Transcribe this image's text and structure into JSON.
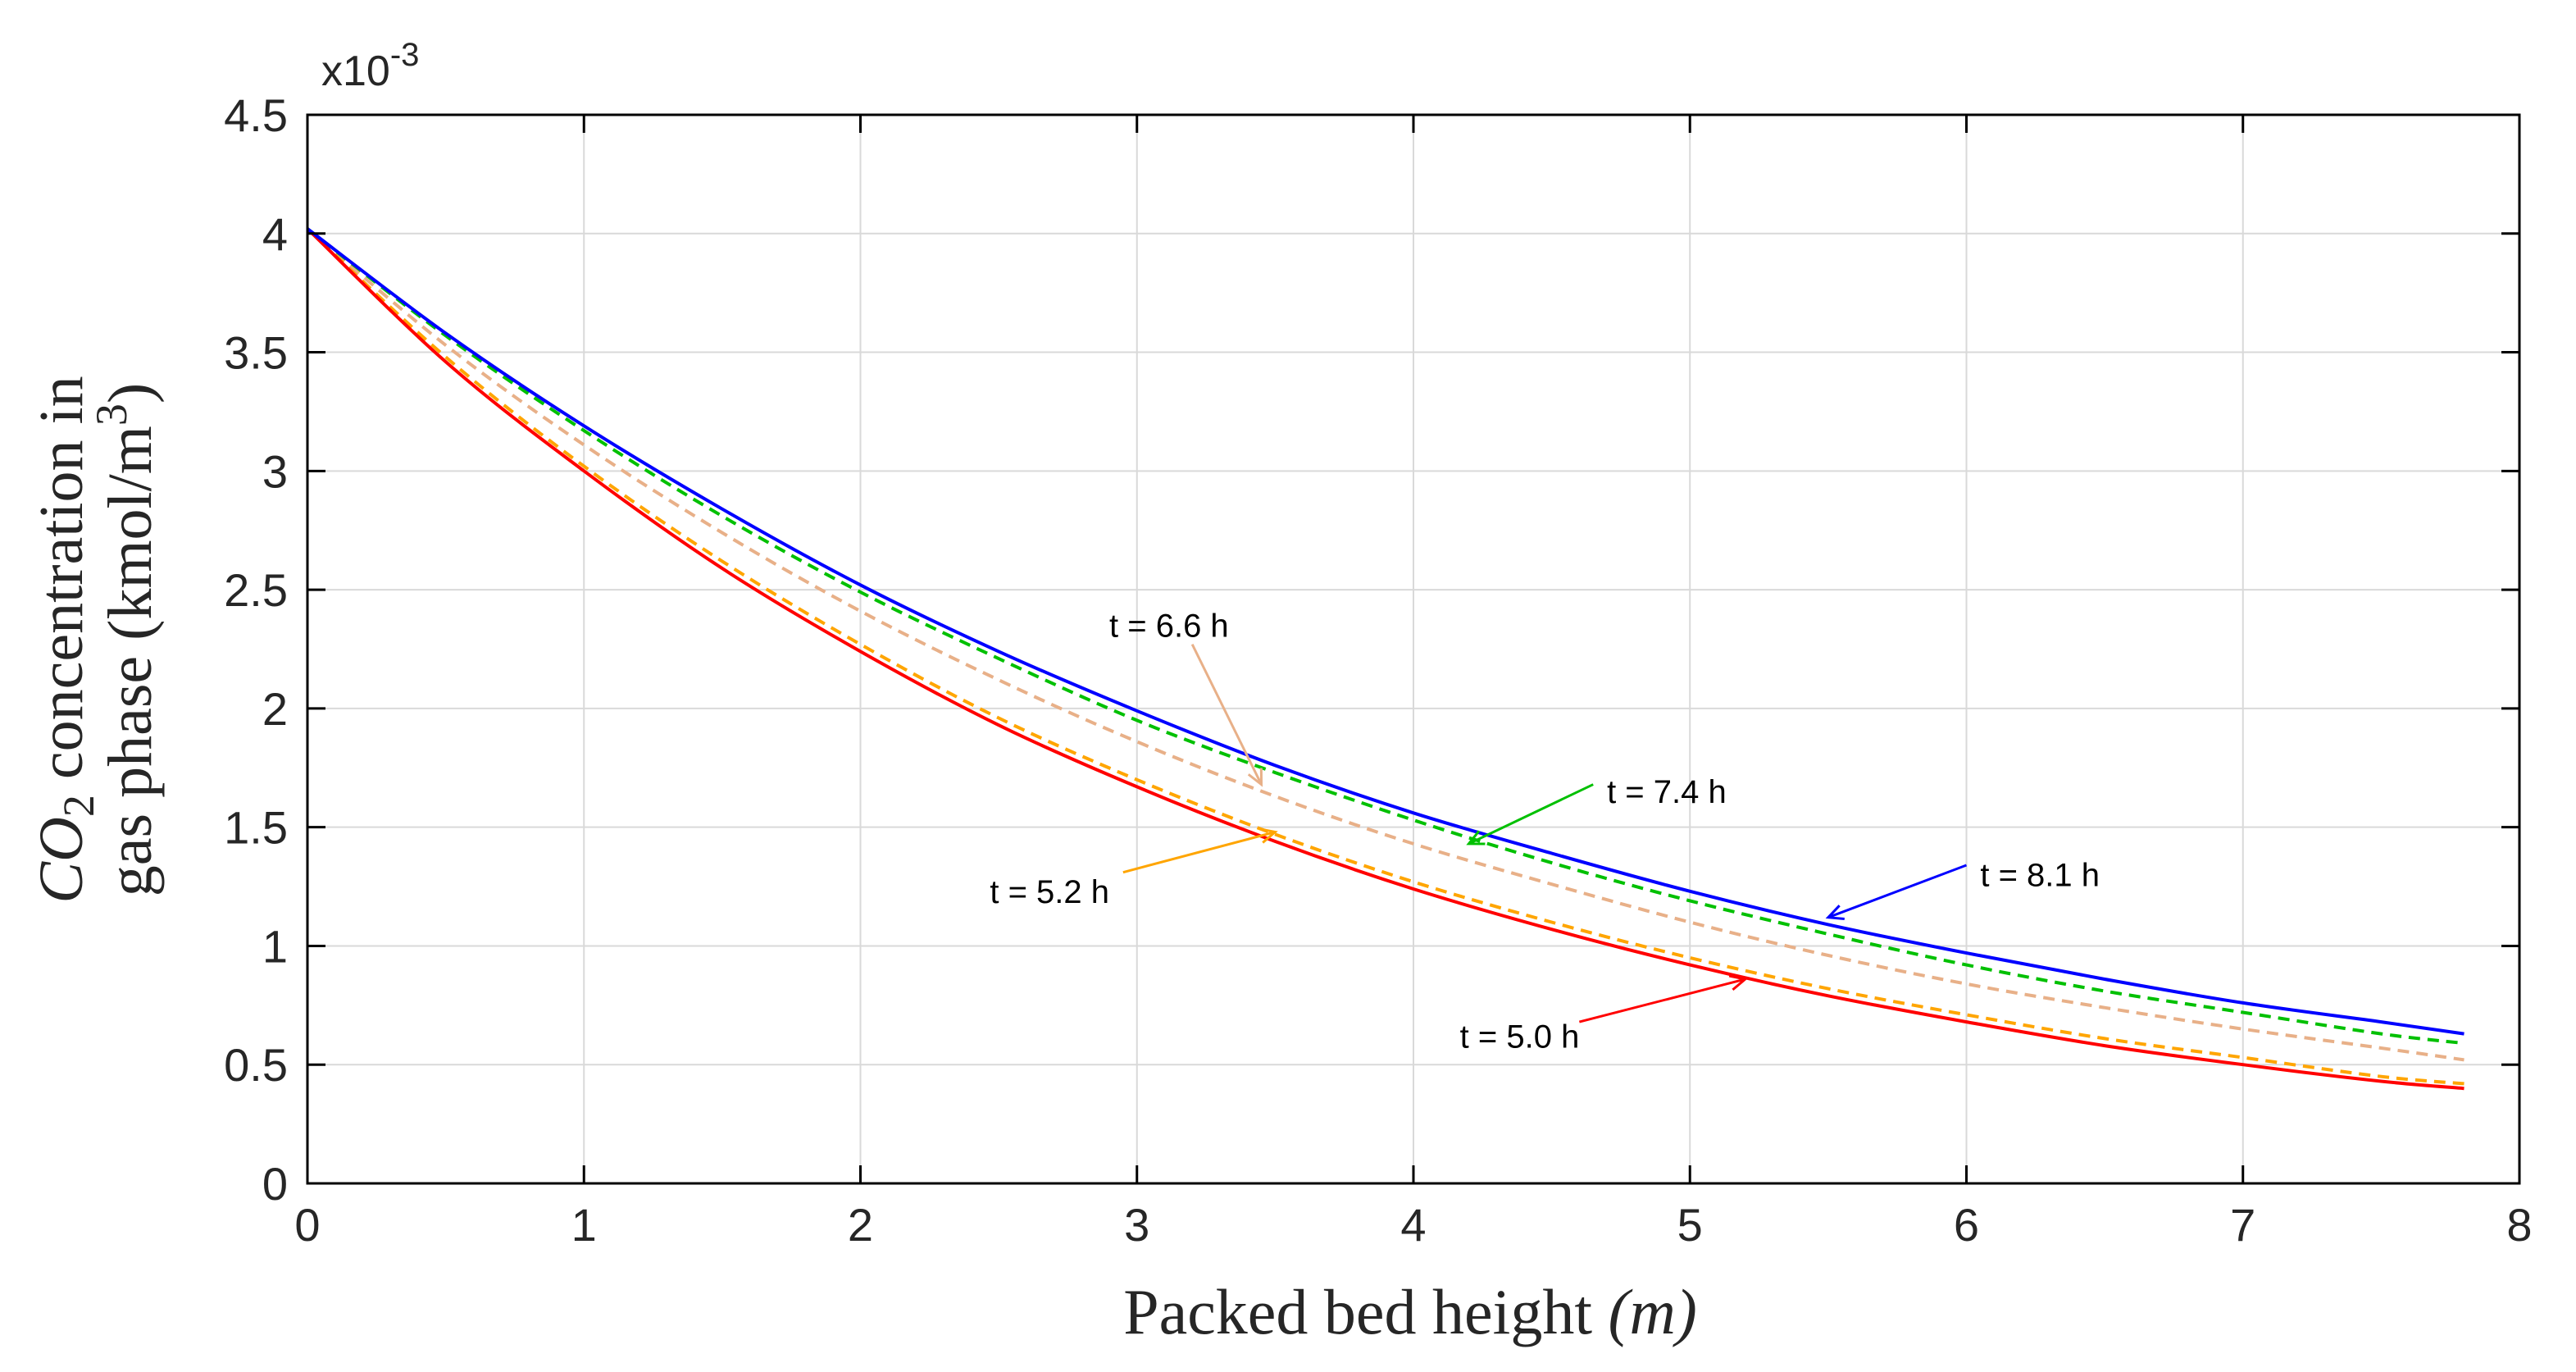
{
  "chart_data": {
    "type": "line",
    "title": "",
    "xlabel": "Packed bed height (m)",
    "xlabel_main": "Packed bed height ",
    "xlabel_unit": "(m)",
    "ylabel_line1_prefix": "CO",
    "ylabel_line1_sub": "2",
    "ylabel_line1_suffix": " concentration in",
    "ylabel_line2": "gas phase (kmol/m",
    "ylabel_line2_sup": "3",
    "ylabel_line2_end": ")",
    "exponent_base": "x10",
    "exponent_power": "-3",
    "xlim": [
      0,
      8
    ],
    "ylim": [
      0,
      4.5
    ],
    "xticks": [
      0,
      1,
      2,
      3,
      4,
      5,
      6,
      7,
      8
    ],
    "xtick_labels": [
      "0",
      "1",
      "2",
      "3",
      "4",
      "5",
      "6",
      "7",
      "8"
    ],
    "yticks": [
      0,
      0.5,
      1,
      1.5,
      2,
      2.5,
      3,
      3.5,
      4,
      4.5
    ],
    "ytick_labels": [
      "0",
      "0.5",
      "1",
      "1.5",
      "2",
      "2.5",
      "3",
      "3.5",
      "4",
      "4.5"
    ],
    "grid": true,
    "x": [
      0,
      0.5,
      1,
      1.5,
      2,
      2.5,
      3,
      3.5,
      4,
      4.5,
      5,
      5.5,
      6,
      6.5,
      7,
      7.5,
      7.8
    ],
    "series": [
      {
        "name": "t = 8.1 h",
        "color": "#0000ff",
        "dash": "solid",
        "values": [
          4.02,
          3.58,
          3.19,
          2.84,
          2.52,
          2.24,
          1.99,
          1.76,
          1.56,
          1.39,
          1.23,
          1.09,
          0.97,
          0.86,
          0.76,
          0.68,
          0.63
        ]
      },
      {
        "name": "t = 7.4 h",
        "color": "#00c000",
        "dash": "dashed",
        "values": [
          4.02,
          3.57,
          3.17,
          2.81,
          2.49,
          2.21,
          1.95,
          1.73,
          1.53,
          1.35,
          1.19,
          1.05,
          0.92,
          0.81,
          0.72,
          0.63,
          0.59
        ]
      },
      {
        "name": "t = 6.6 h",
        "color": "#e8b088",
        "dash": "dashed",
        "values": [
          4.02,
          3.53,
          3.11,
          2.74,
          2.41,
          2.12,
          1.86,
          1.63,
          1.43,
          1.26,
          1.1,
          0.96,
          0.84,
          0.74,
          0.65,
          0.57,
          0.52
        ]
      },
      {
        "name": "t = 5.2 h",
        "color": "#ffa500",
        "dash": "dashed",
        "values": [
          4.02,
          3.48,
          3.02,
          2.62,
          2.27,
          1.96,
          1.7,
          1.47,
          1.27,
          1.1,
          0.95,
          0.82,
          0.71,
          0.61,
          0.53,
          0.45,
          0.42
        ]
      },
      {
        "name": "t = 5.0 h",
        "color": "#ff0000",
        "dash": "solid",
        "values": [
          4.02,
          3.46,
          3.0,
          2.59,
          2.24,
          1.93,
          1.67,
          1.44,
          1.24,
          1.07,
          0.92,
          0.79,
          0.68,
          0.58,
          0.5,
          0.43,
          0.4
        ]
      }
    ],
    "annotations": [
      {
        "text": "t = 6.6 h",
        "color": "#e8b088",
        "label_x": 2.9,
        "label_y": 2.35,
        "tail_x": 3.2,
        "tail_y": 2.27,
        "point_x": 3.45,
        "point_y": 1.68,
        "anchor": "start"
      },
      {
        "text": "t = 7.4 h",
        "color": "#00c000",
        "label_x": 4.7,
        "label_y": 1.65,
        "tail_x": 4.65,
        "tail_y": 1.68,
        "point_x": 4.2,
        "point_y": 1.43,
        "anchor": "start"
      },
      {
        "text": "t = 8.1 h",
        "color": "#0000ff",
        "label_x": 6.05,
        "label_y": 1.3,
        "tail_x": 6.0,
        "tail_y": 1.34,
        "point_x": 5.5,
        "point_y": 1.12,
        "anchor": "start"
      },
      {
        "text": "t = 5.2 h",
        "color": "#ffa500",
        "label_x": 2.9,
        "label_y": 1.23,
        "tail_x": 2.95,
        "tail_y": 1.31,
        "point_x": 3.5,
        "point_y": 1.48,
        "anchor": "end"
      },
      {
        "text": "t = 5.0 h",
        "color": "#ff0000",
        "label_x": 4.6,
        "label_y": 0.62,
        "tail_x": 4.6,
        "tail_y": 0.68,
        "point_x": 5.2,
        "point_y": 0.86,
        "anchor": "end"
      }
    ]
  }
}
